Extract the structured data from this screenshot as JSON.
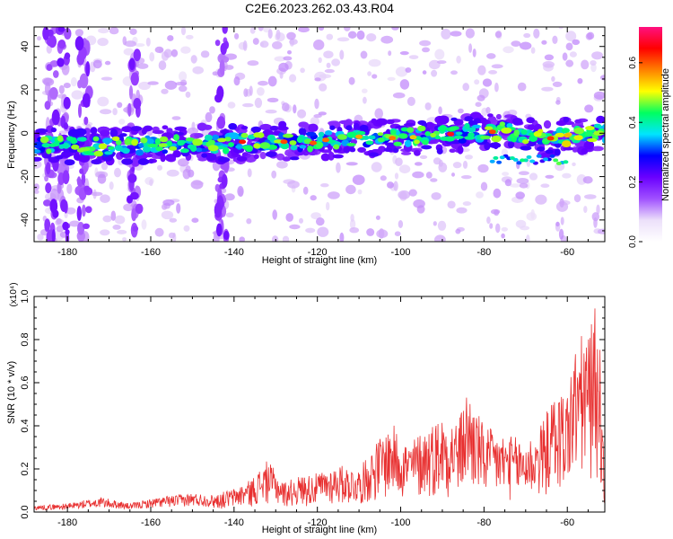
{
  "title": "C2E6.2023.262.03.43.R04",
  "chart_data": [
    {
      "type": "heatmap",
      "xlabel": "Height of straight line (km)",
      "ylabel": "Frequency (Hz)",
      "xlim": [
        -188,
        -51
      ],
      "ylim": [
        -50,
        49
      ],
      "xticks": [
        -180,
        -160,
        -140,
        -120,
        -100,
        -80,
        -60
      ],
      "yticks": [
        -40,
        -20,
        0,
        20,
        40
      ],
      "grid": false,
      "band_center": [
        [
          -187,
          -5
        ],
        [
          -175,
          -6
        ],
        [
          -165,
          -6
        ],
        [
          -155,
          -5
        ],
        [
          -145,
          -5
        ],
        [
          -135,
          -4
        ],
        [
          -125,
          -4
        ],
        [
          -115,
          -3
        ],
        [
          -105,
          -2
        ],
        [
          -95,
          -1
        ],
        [
          -85,
          0
        ],
        [
          -75,
          1
        ],
        [
          -65,
          -3
        ],
        [
          -55,
          0
        ]
      ],
      "colorbar": {
        "label": "Normalized spectral amplitude",
        "range": [
          0.0,
          0.72
        ],
        "ticks": [
          0.0,
          0.2,
          0.4,
          0.6
        ],
        "colors": [
          "#ffffff",
          "#ece0fa",
          "#a050ff",
          "#6a00ff",
          "#0000ff",
          "#00e5ff",
          "#00ff60",
          "#ffff00",
          "#ff8000",
          "#ff0000",
          "#ff1080"
        ]
      }
    },
    {
      "type": "line",
      "xlabel": "Height of straight line (km)",
      "ylabel": "SNR (10 * v/v)",
      "multiplier": "(x10⁴)",
      "xlim": [
        -188,
        -51
      ],
      "ylim": [
        0,
        1.0
      ],
      "xticks": [
        -180,
        -160,
        -140,
        -120,
        -100,
        -80,
        -60
      ],
      "yticks": [
        0.0,
        0.2,
        0.4,
        0.6,
        0.8,
        1.0
      ],
      "color": "#e83030",
      "envelope": [
        [
          -188,
          0.03
        ],
        [
          -180,
          0.04
        ],
        [
          -172,
          0.07
        ],
        [
          -165,
          0.04
        ],
        [
          -158,
          0.07
        ],
        [
          -150,
          0.09
        ],
        [
          -145,
          0.08
        ],
        [
          -140,
          0.11
        ],
        [
          -136,
          0.15
        ],
        [
          -132,
          0.24
        ],
        [
          -128,
          0.14
        ],
        [
          -124,
          0.17
        ],
        [
          -120,
          0.18
        ],
        [
          -115,
          0.22
        ],
        [
          -110,
          0.2
        ],
        [
          -105,
          0.35
        ],
        [
          -102,
          0.41
        ],
        [
          -98,
          0.32
        ],
        [
          -95,
          0.38
        ],
        [
          -90,
          0.45
        ],
        [
          -86,
          0.43
        ],
        [
          -84,
          0.58
        ],
        [
          -80,
          0.4
        ],
        [
          -75,
          0.36
        ],
        [
          -70,
          0.34
        ],
        [
          -67,
          0.38
        ],
        [
          -63,
          0.55
        ],
        [
          -60,
          0.58
        ],
        [
          -58,
          0.78
        ],
        [
          -56,
          0.84
        ],
        [
          -54,
          0.88
        ],
        [
          -53,
          1.0
        ],
        [
          -52,
          0.72
        ],
        [
          -51,
          0.12
        ]
      ]
    }
  ]
}
